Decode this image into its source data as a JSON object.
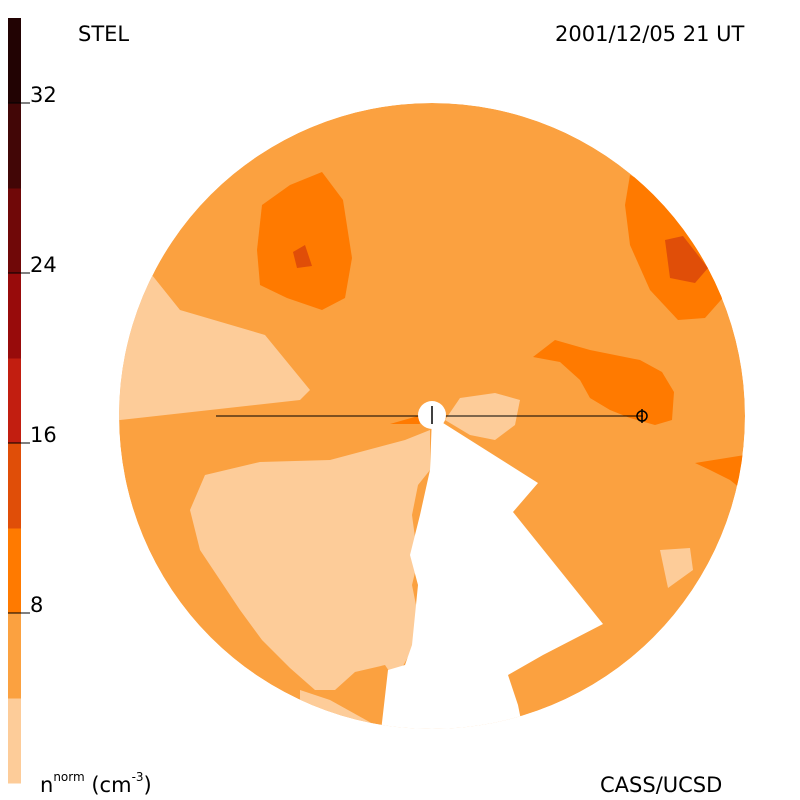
{
  "header": {
    "instrument": "STEL",
    "datetime": "2001/12/05 21 UT"
  },
  "footer": {
    "credit": "CASS/UCSD",
    "unit_base": "n",
    "unit_sup": "norm",
    "unit_rest": "(cm",
    "unit_exp": "-3",
    "unit_close": ")"
  },
  "colors": {
    "c0_4": "#FDCC99",
    "c4_8": "#FBA140",
    "c8_12": "#FF7A00",
    "c12_16": "#E04E08",
    "c16_20": "#C21E10",
    "c20_24": "#980B0B",
    "c24_28": "#700808",
    "c28_32": "#420606",
    "c32_36": "#220303",
    "line": "#000000",
    "sun": "#ffffff"
  },
  "chart_data": {
    "type": "heatmap",
    "title": "",
    "quantity": "normalized density n^norm (cm^-3)",
    "colorbar": {
      "min": 0,
      "max": 36,
      "bins": [
        {
          "range": [
            0,
            4
          ],
          "color": "#FDCC99"
        },
        {
          "range": [
            4,
            8
          ],
          "color": "#FBA140"
        },
        {
          "range": [
            8,
            12
          ],
          "color": "#FF7A00"
        },
        {
          "range": [
            12,
            16
          ],
          "color": "#E04E08"
        },
        {
          "range": [
            16,
            20
          ],
          "color": "#C21E10"
        },
        {
          "range": [
            20,
            24
          ],
          "color": "#980B0B"
        },
        {
          "range": [
            24,
            28
          ],
          "color": "#700808"
        },
        {
          "range": [
            28,
            32
          ],
          "color": "#420606"
        },
        {
          "range": [
            32,
            36
          ],
          "color": "#220303"
        }
      ],
      "ticks": [
        8,
        16,
        24,
        32
      ],
      "tick_labels": [
        "8",
        "16",
        "24",
        "32"
      ]
    },
    "regions": [
      {
        "level": "0-4",
        "description": "western low-density band and southwestern lobe"
      },
      {
        "level": "4-8",
        "description": "background density over most of disk"
      },
      {
        "level": "8-12",
        "description": "enhancements to the northwest, northeast and east of the Sun"
      },
      {
        "level": "12-16",
        "description": "small cores inside northwest and northeast enhancements"
      }
    ],
    "markers": [
      "Sun at center",
      "Earth on the right"
    ]
  }
}
